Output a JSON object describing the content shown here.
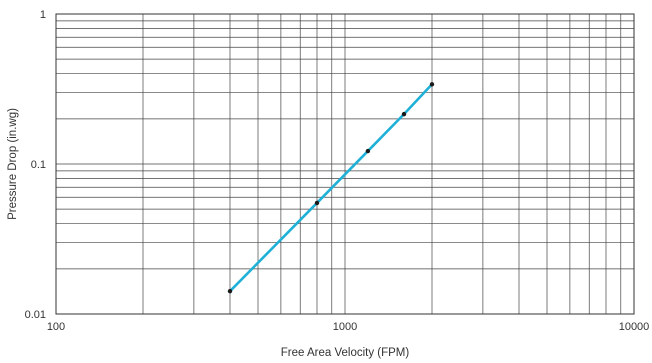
{
  "chart_data": {
    "type": "line",
    "title": "",
    "xlabel": "Free Area Velocity (FPM)",
    "ylabel": "Pressure Drop (in.wg)",
    "x_scale": "log",
    "y_scale": "log",
    "xlim": [
      100,
      10000
    ],
    "ylim": [
      0.01,
      1
    ],
    "x_tick_labels": [
      "100",
      "1000",
      "10000"
    ],
    "y_tick_labels": [
      "1",
      "0.1",
      "0.01"
    ],
    "grid": true,
    "series": [
      {
        "color": "#1fb0d8",
        "points": [
          {
            "x": 400,
            "y": 0.0142
          },
          {
            "x": 800,
            "y": 0.055
          },
          {
            "x": 1200,
            "y": 0.122
          },
          {
            "x": 1600,
            "y": 0.215
          },
          {
            "x": 2000,
            "y": 0.34
          }
        ]
      }
    ]
  }
}
